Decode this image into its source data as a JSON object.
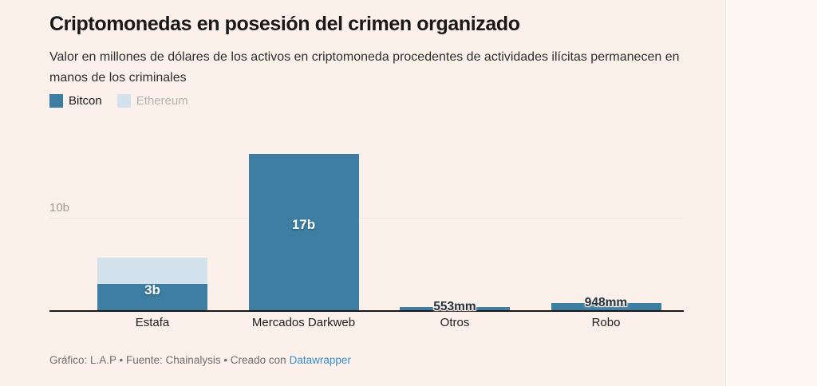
{
  "header": {
    "title": "Criptomonedas en posesión del crimen organizado",
    "subtitle": "Valor en millones de dólares de los activos en criptomoneda procedentes de actividades ilícitas permanecen en manos de los criminales"
  },
  "legend": {
    "items": [
      {
        "label": "Bitcon",
        "swatch_color": "#3d7ea2",
        "label_color": "#1a1a1a"
      },
      {
        "label": "Ethereum",
        "swatch_color": "#d3e2ec",
        "label_color": "#b6b2ae"
      }
    ]
  },
  "chart_data": {
    "type": "bar",
    "stacked": true,
    "title": "Criptomonedas en posesión del crimen organizado",
    "categories": [
      "Estafa",
      "Mercados Darkweb",
      "Otros",
      "Robo"
    ],
    "series": [
      {
        "name": "Bitcon",
        "color": "#3d7ea2",
        "values": [
          3,
          17,
          0.553,
          0.948
        ]
      },
      {
        "name": "Ethereum",
        "color": "#d3e2ec",
        "values": [
          2.8,
          0,
          0,
          0
        ]
      }
    ],
    "bar_value_labels": [
      {
        "text": "3b",
        "placement": "inside"
      },
      {
        "text": "17b",
        "placement": "inside"
      },
      {
        "text": "553mm",
        "placement": "outside"
      },
      {
        "text": "948mm",
        "placement": "outside"
      }
    ],
    "y_axis": {
      "ymin": 0,
      "ymax_visible": 17,
      "gridline_value": 10,
      "gridline_label": "10b"
    },
    "grid": "single horizontal gridline at 10b",
    "legend_position": "top-left",
    "xlabel": "",
    "ylabel": ""
  },
  "footer": {
    "credit_text": "Gráfico: L.A.P • Fuente: Chainalysis • Creado con",
    "link_label": "Datawrapper",
    "link_color": "#3a8dd0"
  },
  "colors": {
    "background": "#fbf1ea",
    "bitcoin_bar": "#3d7ea2",
    "ethereum_bar": "#d3e2ec",
    "axis_line": "#18181a",
    "gridline": "#efe6df",
    "gridline_label_color": "#a49a92"
  }
}
